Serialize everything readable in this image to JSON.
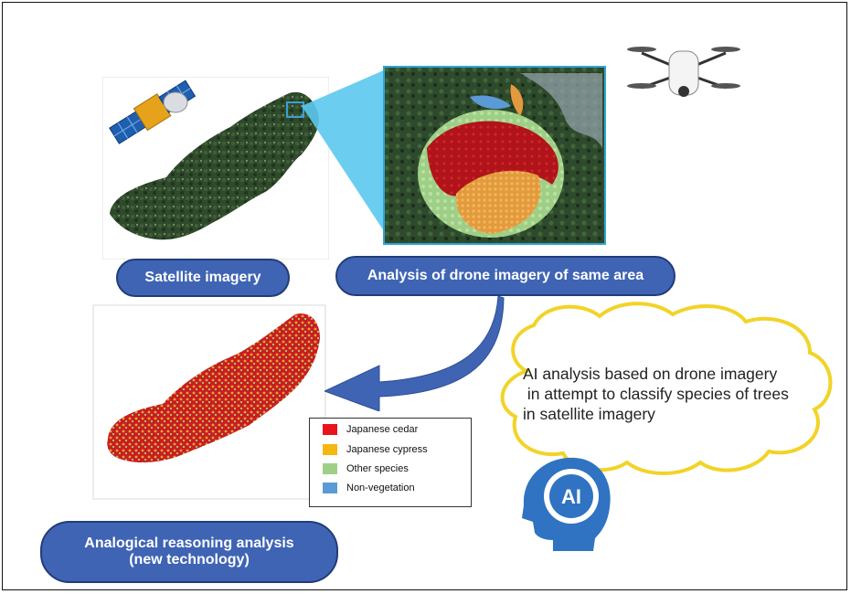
{
  "labels": {
    "satellite": "Satellite imagery",
    "drone": "Analysis of drone imagery of same area",
    "analogical_line1": "Analogical reasoning analysis",
    "analogical_line2": "(new technology)",
    "ai_badge": "AI"
  },
  "cloud": {
    "line1": "AI analysis based on drone imagery",
    "line2": " in attempt to classify species of trees",
    "line3": "in satellite imagery"
  },
  "legend": [
    {
      "label": "Japanese cedar",
      "color": "#e8141c"
    },
    {
      "label": "Japanese cypress",
      "color": "#f5b80f"
    },
    {
      "label": "Other species",
      "color": "#9fcf87"
    },
    {
      "label": "Non-vegetation",
      "color": "#5b9bd5"
    }
  ],
  "colors": {
    "pill_fill": "#3f64b4",
    "pill_border": "#223c78",
    "arrow": "#3f64b4",
    "cloud_outline": "#f2d327",
    "callout": "#5bc8ee"
  }
}
